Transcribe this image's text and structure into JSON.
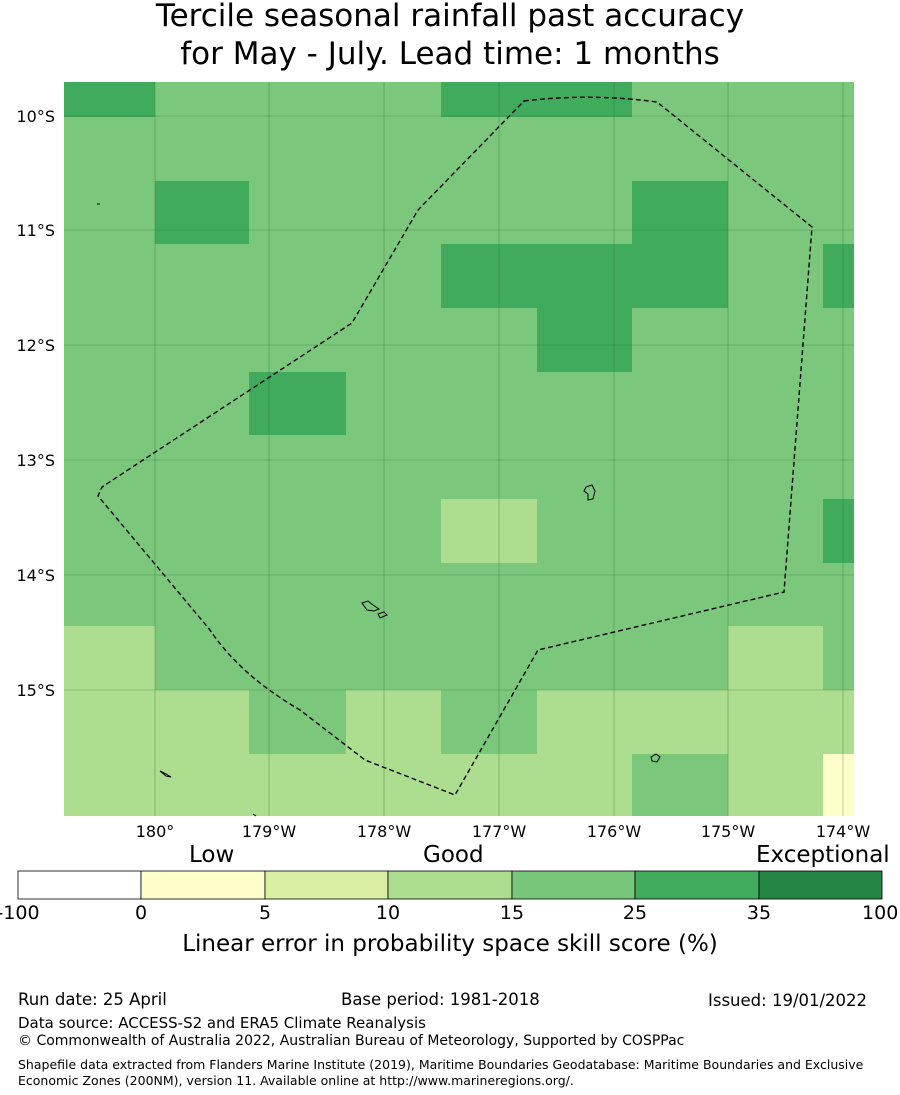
{
  "title": {
    "line1": "Tercile seasonal rainfall past accuracy",
    "line2": "for May - July. Lead time: 1 months"
  },
  "map": {
    "lat_ticks": [
      "10°S",
      "11°S",
      "12°S",
      "13°S",
      "14°S",
      "15°S"
    ],
    "lon_ticks": [
      "180°",
      "179°W",
      "178°W",
      "177°W",
      "176°W",
      "175°W",
      "174°W"
    ],
    "cell_colors": {
      "15-25": "#7bc77c",
      "25-35": "#41ab5d",
      "10-15": "#addd8e",
      "0-5": "#ffffcc"
    },
    "grid": [
      [
        "25-35",
        "15-25",
        "15-25",
        "15-25",
        "25-35",
        "25-35",
        "15-25",
        "15-25",
        "15-25"
      ],
      [
        "15-25",
        "15-25",
        "15-25",
        "15-25",
        "15-25",
        "15-25",
        "15-25",
        "15-25",
        "15-25"
      ],
      [
        "15-25",
        "25-35",
        "15-25",
        "15-25",
        "15-25",
        "15-25",
        "25-35",
        "15-25",
        "15-25"
      ],
      [
        "15-25",
        "15-25",
        "15-25",
        "15-25",
        "25-35",
        "25-35",
        "25-35",
        "15-25",
        "25-35"
      ],
      [
        "15-25",
        "15-25",
        "15-25",
        "15-25",
        "15-25",
        "25-35",
        "15-25",
        "15-25",
        "15-25"
      ],
      [
        "15-25",
        "15-25",
        "25-35",
        "15-25",
        "15-25",
        "15-25",
        "15-25",
        "15-25",
        "15-25"
      ],
      [
        "15-25",
        "15-25",
        "15-25",
        "15-25",
        "15-25",
        "15-25",
        "15-25",
        "15-25",
        "15-25"
      ],
      [
        "15-25",
        "15-25",
        "15-25",
        "15-25",
        "10-15",
        "15-25",
        "15-25",
        "15-25",
        "25-35"
      ],
      [
        "15-25",
        "15-25",
        "15-25",
        "15-25",
        "15-25",
        "15-25",
        "15-25",
        "15-25",
        "15-25"
      ],
      [
        "10-15",
        "15-25",
        "15-25",
        "15-25",
        "15-25",
        "15-25",
        "15-25",
        "10-15",
        "15-25"
      ],
      [
        "10-15",
        "10-15",
        "15-25",
        "10-15",
        "15-25",
        "10-15",
        "10-15",
        "10-15",
        "10-15"
      ],
      [
        "10-15",
        "10-15",
        "10-15",
        "10-15",
        "10-15",
        "10-15",
        "15-25",
        "10-15",
        "0-5"
      ]
    ]
  },
  "colorbar": {
    "category_labels": [
      "Low",
      "Good",
      "Exceptional"
    ],
    "colors": [
      "#ffffff",
      "#ffffcc",
      "#d9f0a3",
      "#addd8e",
      "#78c679",
      "#41ab5d",
      "#238443"
    ],
    "ticks": [
      "-100",
      "0",
      "5",
      "10",
      "15",
      "25",
      "35",
      "100"
    ],
    "label": "Linear error in probability space skill score (%)"
  },
  "footer": {
    "run_date": "Run date: 25 April",
    "base_period": "Base period: 1981-2018",
    "issued": "Issued: 19/01/2022",
    "data_source": "Data source: ACCESS-S2 and ERA5 Climate Reanalysis",
    "copyright": "© Commonwealth of Australia 2022, Australian Bureau of Meteorology, Supported by COSPPac",
    "shapefile": "Shapefile data extracted from Flanders Marine Institute (2019), Maritime Boundaries Geodatabase: Maritime Boundaries and Exclusive Economic Zones (200NM), version 11. Available online at http://www.marineregions.org/."
  }
}
